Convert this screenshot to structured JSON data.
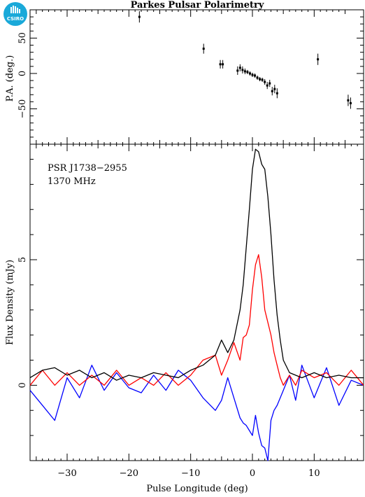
{
  "title": "Parkes Pulsar Polarimetry",
  "logo_text": "CSIRO",
  "colors": {
    "total": "#000000",
    "linear": "#ff0000",
    "circular": "#0000ff",
    "logo": "#1aa9d9"
  },
  "chart_data": [
    {
      "type": "scatter",
      "name": "position-angle-panel",
      "ylabel": "P.A. (deg.)",
      "xlim": [
        -36,
        18
      ],
      "ylim": [
        -100,
        90
      ],
      "yticks": [
        -50,
        0,
        50
      ],
      "points": [
        {
          "x": -18.3,
          "y": 80,
          "err": 8
        },
        {
          "x": -7.9,
          "y": 35,
          "err": 7
        },
        {
          "x": -5.2,
          "y": 13,
          "err": 6
        },
        {
          "x": -4.8,
          "y": 13,
          "err": 6
        },
        {
          "x": -2.4,
          "y": 4,
          "err": 6
        },
        {
          "x": -2.0,
          "y": 8,
          "err": 5
        },
        {
          "x": -1.6,
          "y": 5,
          "err": 5
        },
        {
          "x": -1.2,
          "y": 3,
          "err": 4
        },
        {
          "x": -0.8,
          "y": 2,
          "err": 3
        },
        {
          "x": -0.4,
          "y": 0,
          "err": 3
        },
        {
          "x": 0.0,
          "y": -2,
          "err": 3
        },
        {
          "x": 0.4,
          "y": -3,
          "err": 3
        },
        {
          "x": 0.8,
          "y": -6,
          "err": 3
        },
        {
          "x": 1.2,
          "y": -8,
          "err": 3
        },
        {
          "x": 1.6,
          "y": -9,
          "err": 3
        },
        {
          "x": 2.0,
          "y": -12,
          "err": 4
        },
        {
          "x": 2.4,
          "y": -17,
          "err": 5
        },
        {
          "x": 2.8,
          "y": -14,
          "err": 5
        },
        {
          "x": 3.2,
          "y": -25,
          "err": 6
        },
        {
          "x": 3.6,
          "y": -22,
          "err": 6
        },
        {
          "x": 4.0,
          "y": -28,
          "err": 7
        },
        {
          "x": 10.6,
          "y": 20,
          "err": 8
        },
        {
          "x": 15.5,
          "y": -38,
          "err": 8
        },
        {
          "x": 15.9,
          "y": -42,
          "err": 8
        }
      ]
    },
    {
      "type": "line",
      "name": "flux-panel",
      "xlabel": "Pulse Longitude (deg)",
      "ylabel": "Flux Density (mJy)",
      "xlim": [
        -36,
        18
      ],
      "ylim": [
        -3,
        9.6
      ],
      "xticks": [
        -30,
        -20,
        -10,
        0,
        10
      ],
      "yticks": [
        0,
        5
      ],
      "annotations": [
        "PSR J1738−2955",
        "1370 MHz"
      ],
      "series": [
        {
          "key": "total",
          "x": [
            -36,
            -34,
            -32,
            -30,
            -28,
            -26,
            -24,
            -22,
            -20,
            -18,
            -16,
            -14,
            -12,
            -10,
            -8,
            -6,
            -5,
            -4,
            -3,
            -2,
            -1.5,
            -1,
            -0.5,
            0,
            0.5,
            1,
            1.5,
            2,
            2.5,
            3,
            3.5,
            4,
            4.5,
            5,
            6,
            7,
            8,
            10,
            12,
            14,
            16,
            18
          ],
          "y": [
            0.3,
            0.6,
            0.7,
            0.4,
            0.6,
            0.3,
            0.5,
            0.2,
            0.4,
            0.3,
            0.5,
            0.4,
            0.3,
            0.6,
            0.8,
            1.2,
            1.8,
            1.3,
            1.8,
            3.0,
            4.0,
            5.5,
            7.0,
            8.6,
            9.4,
            9.3,
            8.8,
            8.6,
            7.5,
            6.0,
            4.2,
            2.8,
            1.8,
            1.0,
            0.5,
            0.4,
            0.3,
            0.5,
            0.3,
            0.4,
            0.3,
            0.3
          ]
        },
        {
          "key": "linear",
          "x": [
            -36,
            -34,
            -32,
            -30,
            -28,
            -26,
            -24,
            -22,
            -20,
            -18,
            -16,
            -14,
            -12,
            -10,
            -8,
            -6,
            -5,
            -4,
            -3,
            -2,
            -1.5,
            -1,
            -0.5,
            0,
            0.5,
            1,
            1.5,
            2,
            2.5,
            3,
            3.5,
            4,
            4.5,
            5,
            6,
            7,
            8,
            10,
            12,
            14,
            16,
            18
          ],
          "y": [
            0.0,
            0.6,
            0.0,
            0.5,
            0.0,
            0.4,
            0.0,
            0.6,
            0.0,
            0.3,
            0.0,
            0.5,
            0.0,
            0.4,
            1.0,
            1.2,
            0.4,
            1.0,
            1.7,
            1.0,
            1.9,
            2.0,
            2.4,
            3.8,
            4.8,
            5.2,
            4.3,
            3.0,
            2.5,
            2.0,
            1.3,
            0.8,
            0.3,
            0.0,
            0.4,
            0.0,
            0.6,
            0.3,
            0.5,
            0.0,
            0.6,
            0.0
          ]
        },
        {
          "key": "circular",
          "x": [
            -36,
            -34,
            -32,
            -30,
            -28,
            -26,
            -24,
            -22,
            -20,
            -18,
            -16,
            -14,
            -12,
            -10,
            -8,
            -6,
            -5,
            -4,
            -3,
            -2,
            -1.5,
            -1,
            -0.5,
            0,
            0.5,
            1,
            1.5,
            2,
            2.5,
            3,
            3.5,
            4,
            4.5,
            5,
            6,
            7,
            8,
            10,
            12,
            14,
            16,
            18
          ],
          "y": [
            -0.2,
            -0.8,
            -1.4,
            0.3,
            -0.5,
            0.8,
            -0.2,
            0.5,
            -0.1,
            -0.3,
            0.4,
            -0.2,
            0.6,
            0.2,
            -0.5,
            -1.0,
            -0.6,
            0.3,
            -0.5,
            -1.3,
            -1.5,
            -1.6,
            -1.8,
            -2.0,
            -1.2,
            -1.9,
            -2.4,
            -2.5,
            -3.0,
            -1.4,
            -1.0,
            -0.8,
            -0.5,
            -0.2,
            0.4,
            -0.6,
            0.8,
            -0.5,
            0.7,
            -0.8,
            0.2,
            0.0
          ]
        }
      ]
    }
  ]
}
